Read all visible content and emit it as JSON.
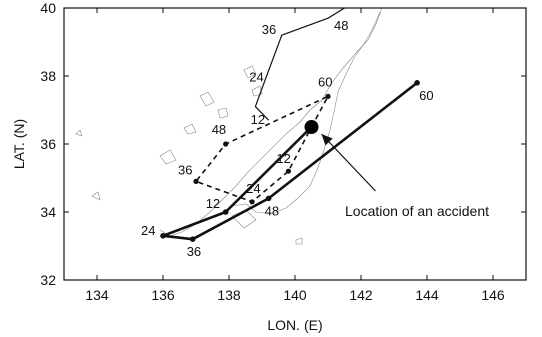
{
  "chart_data": {
    "type": "line",
    "xlabel": "LON. (E)",
    "ylabel": "LAT. (N)",
    "xlim": [
      133,
      147
    ],
    "ylim": [
      32,
      40
    ],
    "xticks": [
      134,
      136,
      138,
      140,
      142,
      144,
      146
    ],
    "yticks": [
      32,
      34,
      36,
      38,
      40
    ],
    "grid": false,
    "series": [
      {
        "style": "thin-solid",
        "points": [
          {
            "x": 139.2,
            "y": 36.7,
            "label": "12"
          },
          {
            "x": 138.8,
            "y": 37.1,
            "label": ""
          },
          {
            "x": 139.1,
            "y": 37.9,
            "label": "24"
          },
          {
            "x": 139.6,
            "y": 39.2,
            "label": "36"
          },
          {
            "x": 141.0,
            "y": 39.7,
            "label": "48"
          },
          {
            "x": 141.5,
            "y": 40.0,
            "label": ""
          }
        ]
      },
      {
        "style": "dashed",
        "points": [
          {
            "x": 140.5,
            "y": 36.5,
            "label": ""
          },
          {
            "x": 141.0,
            "y": 37.4,
            "label": "60"
          },
          {
            "x": 137.9,
            "y": 36.0,
            "label": "48"
          },
          {
            "x": 137.0,
            "y": 34.9,
            "label": "36"
          },
          {
            "x": 138.7,
            "y": 34.3,
            "label": "24"
          },
          {
            "x": 139.8,
            "y": 35.2,
            "label": "12"
          },
          {
            "x": 140.5,
            "y": 36.5,
            "label": ""
          }
        ]
      },
      {
        "style": "thick-solid",
        "points": [
          {
            "x": 140.5,
            "y": 36.5,
            "label": ""
          },
          {
            "x": 137.9,
            "y": 34.0,
            "label": "12"
          },
          {
            "x": 136.0,
            "y": 33.3,
            "label": "24"
          },
          {
            "x": 136.9,
            "y": 33.2,
            "label": "36"
          },
          {
            "x": 139.2,
            "y": 34.4,
            "label": "48"
          },
          {
            "x": 143.7,
            "y": 37.8,
            "label": "60"
          }
        ]
      }
    ],
    "annotations": [
      {
        "text": "Location of an accident",
        "x": 140.5,
        "y": 36.5
      }
    ]
  }
}
